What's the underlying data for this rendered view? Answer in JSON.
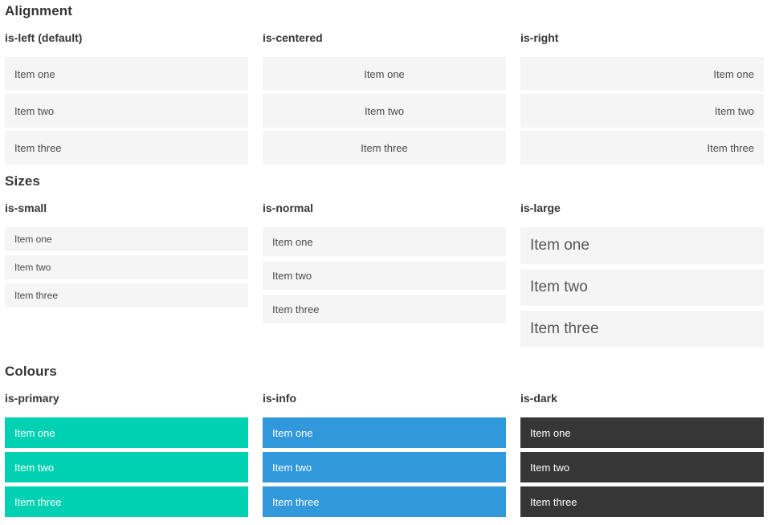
{
  "colors": {
    "primary": "#00d1b2",
    "info": "#3298dc",
    "dark": "#363636",
    "item_background": "#f5f5f5",
    "item_text": "#4a4a4a",
    "heading_text": "#363636"
  },
  "sections": [
    {
      "title": "Alignment",
      "columns": [
        {
          "heading": "is-left (default)",
          "variant": "left",
          "items": [
            "Item one",
            "Item two",
            "Item three"
          ]
        },
        {
          "heading": "is-centered",
          "variant": "centered",
          "items": [
            "Item one",
            "Item two",
            "Item three"
          ]
        },
        {
          "heading": "is-right",
          "variant": "right",
          "items": [
            "Item one",
            "Item two",
            "Item three"
          ]
        }
      ]
    },
    {
      "title": "Sizes",
      "columns": [
        {
          "heading": "is-small",
          "variant": "small",
          "items": [
            "Item one",
            "Item two",
            "Item three"
          ]
        },
        {
          "heading": "is-normal",
          "variant": "normal",
          "items": [
            "Item one",
            "Item two",
            "Item three"
          ]
        },
        {
          "heading": "is-large",
          "variant": "large",
          "items": [
            "Item one",
            "Item two",
            "Item three"
          ]
        }
      ]
    },
    {
      "title": "Colours",
      "columns": [
        {
          "heading": "is-primary",
          "variant": "primary",
          "items": [
            "Item one",
            "Item two",
            "Item three"
          ]
        },
        {
          "heading": "is-info",
          "variant": "info",
          "items": [
            "Item one",
            "Item two",
            "Item three"
          ]
        },
        {
          "heading": "is-dark",
          "variant": "dark",
          "items": [
            "Item one",
            "Item two",
            "Item three"
          ]
        }
      ]
    }
  ]
}
